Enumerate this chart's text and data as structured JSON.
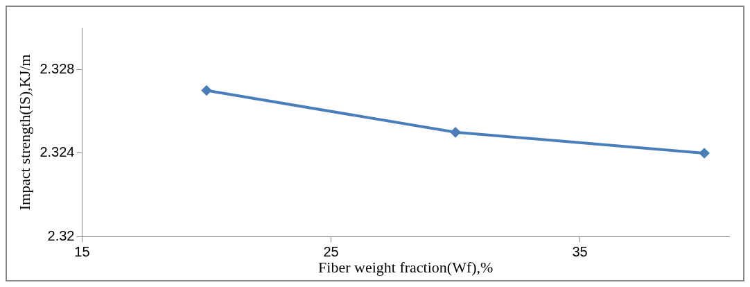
{
  "chart_data": {
    "type": "line",
    "xlabel": "Fiber weight fraction(Wf),%",
    "ylabel": "Impact strength(IS),KJ/m",
    "x": [
      20,
      30,
      40
    ],
    "series": [
      {
        "color": "#4a7ebb",
        "values": [
          2.327,
          2.325,
          2.324
        ]
      }
    ],
    "xlim": [
      15,
      41
    ],
    "xticks": [
      15,
      25,
      35
    ],
    "ylim": [
      2.32,
      2.33
    ],
    "yticks": [
      2.32,
      2.324,
      2.328
    ],
    "grid": false,
    "legend": false,
    "marker": "diamond",
    "line_style": "solid"
  }
}
